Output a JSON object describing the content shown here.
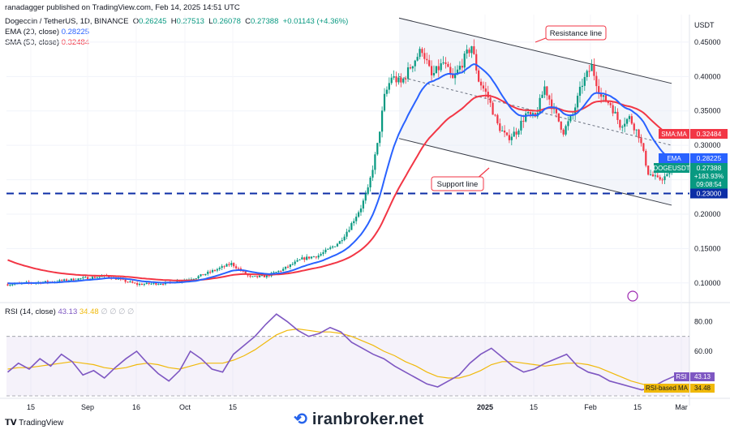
{
  "header": {
    "published": "ranadagger published on TradingView.com, Feb 14, 2025 14:51 UTC",
    "symbol_line": "Dogecoin / TetherUS, 1D, BINANCE",
    "ohlc": {
      "o_label": "O",
      "o": "0.26245",
      "h_label": "H",
      "h": "0.27513",
      "l_label": "L",
      "l": "0.26078",
      "c_label": "C",
      "c": "0.27388",
      "chg": "+0.01143 (+4.36%)"
    },
    "ema_label": "EMA (20, close)",
    "ema_value": "0.28225",
    "sma_label": "SMA (50, close)",
    "sma_value": "0.32484",
    "rsi_label": "RSI (14, close)",
    "rsi_value": "43.13",
    "rsi_ma_value": "34.48",
    "rsi_extra": "∅ ∅ ∅ ∅",
    "currency": "USDT"
  },
  "footer": {
    "tv_logo": "TradingView",
    "brand": "iranbroker.net"
  },
  "colors": {
    "up": "#089981",
    "down": "#f23645",
    "ema": "#2962ff",
    "sma": "#f23645",
    "rsi": "#7e57c2",
    "rsi_ma": "#f0b90b",
    "support": "#0c2ea6"
  },
  "chart_data": [
    {
      "type": "candlestick",
      "title": "Dogecoin / TetherUS, 1D, BINANCE",
      "x_ticks": [
        "15",
        "Sep",
        "16",
        "Oct",
        "15",
        "2025",
        "15",
        "Feb",
        "15",
        "Mar"
      ],
      "y_ticks": [
        "0.45000",
        "0.40000",
        "0.35000",
        "0.30000",
        "0.25000",
        "0.20000",
        "0.15000",
        "0.10000"
      ],
      "ylim": [
        0.075,
        0.49
      ],
      "annotations": {
        "resistance": "Resistance line",
        "support": "Support line"
      },
      "horizontal_support": "0.23000",
      "price_tags": [
        {
          "name": "SMA:MA",
          "value": "0.32484"
        },
        {
          "name": "EMA",
          "value": "0.28225"
        },
        {
          "name": "DOGEUSDT",
          "value": "0.27388",
          "sub1": "+183.93%",
          "sub2": "09:08:54"
        },
        {
          "name": "",
          "value": "0.23000"
        }
      ],
      "anchors": [
        [
          0,
          0.098
        ],
        [
          8,
          0.1
        ],
        [
          20,
          0.102
        ],
        [
          30,
          0.106
        ],
        [
          42,
          0.11
        ],
        [
          55,
          0.098
        ],
        [
          68,
          0.1
        ],
        [
          80,
          0.108
        ],
        [
          95,
          0.128
        ],
        [
          103,
          0.108
        ],
        [
          110,
          0.11
        ],
        [
          117,
          0.12
        ],
        [
          125,
          0.135
        ],
        [
          132,
          0.14
        ],
        [
          136,
          0.148
        ],
        [
          141,
          0.16
        ],
        [
          145,
          0.18
        ],
        [
          150,
          0.21
        ],
        [
          153,
          0.235
        ],
        [
          157,
          0.3
        ],
        [
          160,
          0.37
        ],
        [
          163,
          0.4
        ],
        [
          167,
          0.39
        ],
        [
          172,
          0.42
        ],
        [
          176,
          0.44
        ],
        [
          180,
          0.4
        ],
        [
          185,
          0.42
        ],
        [
          189,
          0.395
        ],
        [
          193,
          0.42
        ],
        [
          197,
          0.445
        ],
        [
          200,
          0.395
        ],
        [
          204,
          0.37
        ],
        [
          208,
          0.33
        ],
        [
          212,
          0.31
        ],
        [
          216,
          0.32
        ],
        [
          220,
          0.345
        ],
        [
          224,
          0.34
        ],
        [
          228,
          0.385
        ],
        [
          232,
          0.35
        ],
        [
          236,
          0.32
        ],
        [
          240,
          0.345
        ],
        [
          244,
          0.39
        ],
        [
          248,
          0.415
        ],
        [
          252,
          0.37
        ],
        [
          256,
          0.36
        ],
        [
          260,
          0.33
        ],
        [
          264,
          0.34
        ],
        [
          268,
          0.315
        ],
        [
          272,
          0.26
        ],
        [
          276,
          0.25
        ],
        [
          280,
          0.255
        ],
        [
          283,
          0.274
        ]
      ],
      "ema20_start": 0.1,
      "sma50_start": 0.135
    },
    {
      "type": "line",
      "title": "RSI (14, close)",
      "y_ticks": [
        "80.00",
        "60.00"
      ],
      "ylim": [
        30,
        90
      ],
      "series": [
        {
          "name": "RSI",
          "values": [
            46,
            52,
            48,
            55,
            50,
            58,
            53,
            44,
            47,
            42,
            49,
            55,
            60,
            52,
            45,
            40,
            47,
            60,
            55,
            48,
            46,
            58,
            64,
            70,
            78,
            85,
            80,
            74,
            70,
            72,
            76,
            73,
            66,
            62,
            58,
            55,
            50,
            46,
            42,
            38,
            36,
            40,
            44,
            52,
            58,
            62,
            56,
            50,
            46,
            48,
            52,
            55,
            58,
            50,
            46,
            44,
            40,
            38,
            36,
            34,
            36,
            40,
            43.13
          ],
          "last_value": "43.13"
        },
        {
          "name": "RSI-based MA",
          "values": [
            48,
            49,
            49,
            50,
            51,
            52,
            53,
            52,
            51,
            49,
            48,
            49,
            51,
            52,
            51,
            49,
            48,
            50,
            52,
            52,
            52,
            54,
            57,
            61,
            66,
            71,
            74,
            75,
            74,
            73,
            73,
            72,
            70,
            67,
            64,
            60,
            57,
            53,
            50,
            46,
            43,
            42,
            42,
            44,
            47,
            51,
            53,
            53,
            52,
            51,
            50,
            51,
            52,
            52,
            51,
            49,
            46,
            43,
            40,
            38,
            36,
            35,
            34.48
          ],
          "last_value": "34.48"
        }
      ],
      "levels": [
        30,
        70
      ]
    }
  ]
}
